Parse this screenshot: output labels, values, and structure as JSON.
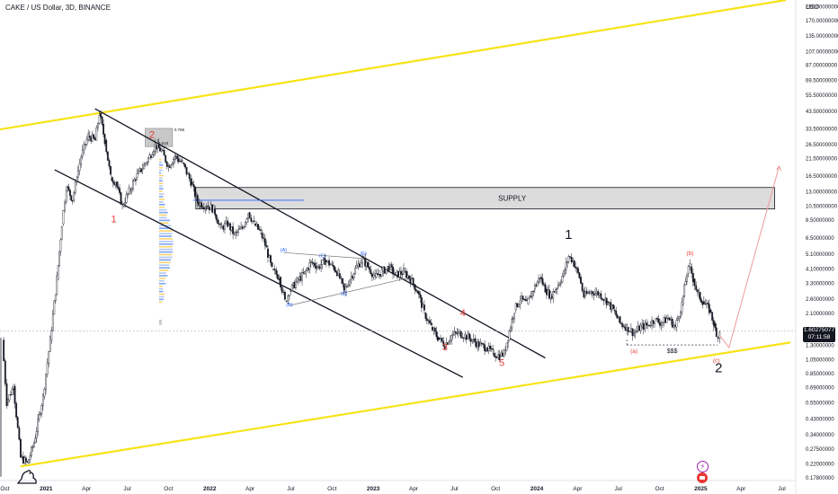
{
  "header": {
    "title": "CAKE / US Dollar, 3D, BINANCE",
    "currency": "USD"
  },
  "last_price": {
    "value": "1.60275077",
    "countdown": "07:11:58"
  },
  "colors": {
    "up": "#131722",
    "down": "#131722",
    "channel": "#f7e316",
    "wave_red": "#e53935",
    "wave_blue": "#2962ff",
    "projection": "#ef9a9a"
  },
  "chart_data": {
    "type": "candlestick",
    "symbol": "CAKE / US Dollar",
    "interval": "3D",
    "exchange": "BINANCE",
    "y_scale": "log",
    "ylim": [
      0.17,
      230
    ],
    "xlim": [
      "2020-09-20",
      "2025-08-01"
    ],
    "x_ticks": [
      "Oct",
      "2021",
      "Apr",
      "Jul",
      "Oct",
      "2022",
      "Apr",
      "Jul",
      "Oct",
      "2023",
      "Apr",
      "Jul",
      "Oct",
      "2024",
      "Apr",
      "Jul",
      "Oct",
      "2025",
      "Apr",
      "Jul"
    ],
    "y_ticks": [
      "210.00000000",
      "170.00000000",
      "135.00000000",
      "107.00000000",
      "87.00000000",
      "69.50000000",
      "55.50000000",
      "43.50000000",
      "33.50000000",
      "26.50000000",
      "21.50000000",
      "16.50000000",
      "13.00000000",
      "10.50000000",
      "8.50000000",
      "6.50000000",
      "5.10000000",
      "4.10000000",
      "3.30000000",
      "2.60000000",
      "2.10000000",
      "1.65000000",
      "1.30000000",
      "1.05000000",
      "0.85000000",
      "0.69000000",
      "0.55000000",
      "0.43000000",
      "0.34000000",
      "0.27500000",
      "0.22000000",
      "0.17800000"
    ],
    "price_path": [
      [
        "2020-09-25",
        1.4
      ],
      [
        "2020-10-05",
        0.55
      ],
      [
        "2020-10-20",
        0.7
      ],
      [
        "2020-11-05",
        0.24
      ],
      [
        "2020-11-20",
        0.22
      ],
      [
        "2020-12-05",
        0.3
      ],
      [
        "2020-12-25",
        0.6
      ],
      [
        "2021-01-10",
        1.4
      ],
      [
        "2021-01-25",
        3.5
      ],
      [
        "2021-02-05",
        8
      ],
      [
        "2021-02-15",
        14
      ],
      [
        "2021-03-01",
        11.5
      ],
      [
        "2021-03-10",
        16
      ],
      [
        "2021-03-20",
        22
      ],
      [
        "2021-04-05",
        30
      ],
      [
        "2021-04-20",
        28
      ],
      [
        "2021-04-30",
        42
      ],
      [
        "2021-05-12",
        28
      ],
      [
        "2021-05-25",
        16
      ],
      [
        "2021-06-05",
        15
      ],
      [
        "2021-06-20",
        10.5
      ],
      [
        "2021-07-05",
        13
      ],
      [
        "2021-07-20",
        16
      ],
      [
        "2021-08-01",
        18
      ],
      [
        "2021-08-20",
        22
      ],
      [
        "2021-09-01",
        26
      ],
      [
        "2021-09-15",
        24
      ],
      [
        "2021-10-01",
        19
      ],
      [
        "2021-10-15",
        22
      ],
      [
        "2021-11-01",
        20
      ],
      [
        "2021-11-20",
        15
      ],
      [
        "2021-12-05",
        11
      ],
      [
        "2021-12-25",
        10.5
      ],
      [
        "2022-01-10",
        10
      ],
      [
        "2022-01-25",
        7.5
      ],
      [
        "2022-02-10",
        8
      ],
      [
        "2022-02-25",
        6.8
      ],
      [
        "2022-03-15",
        7.5
      ],
      [
        "2022-03-28",
        9.5
      ],
      [
        "2022-04-10",
        8
      ],
      [
        "2022-04-25",
        7
      ],
      [
        "2022-05-08",
        5.5
      ],
      [
        "2022-05-20",
        4
      ],
      [
        "2022-06-05",
        3.6
      ],
      [
        "2022-06-18",
        2.5
      ],
      [
        "2022-06-28",
        2.9
      ],
      [
        "2022-07-15",
        3.4
      ],
      [
        "2022-08-01",
        3.8
      ],
      [
        "2022-08-15",
        4.5
      ],
      [
        "2022-09-01",
        4.2
      ],
      [
        "2022-09-15",
        4.6
      ],
      [
        "2022-10-01",
        4.3
      ],
      [
        "2022-10-15",
        3.8
      ],
      [
        "2022-10-28",
        2.9
      ],
      [
        "2022-11-10",
        3.5
      ],
      [
        "2022-11-25",
        4.2
      ],
      [
        "2022-12-08",
        4.7
      ],
      [
        "2022-12-20",
        4.2
      ],
      [
        "2023-01-05",
        3.6
      ],
      [
        "2023-01-20",
        3.9
      ],
      [
        "2023-02-05",
        4.2
      ],
      [
        "2023-02-20",
        3.7
      ],
      [
        "2023-03-10",
        3.9
      ],
      [
        "2023-03-25",
        3.5
      ],
      [
        "2023-04-10",
        2.9
      ],
      [
        "2023-04-25",
        2.1
      ],
      [
        "2023-05-10",
        1.7
      ],
      [
        "2023-05-25",
        1.45
      ],
      [
        "2023-06-10",
        1.3
      ],
      [
        "2023-06-25",
        1.5
      ],
      [
        "2023-07-10",
        1.55
      ],
      [
        "2023-07-25",
        1.5
      ],
      [
        "2023-08-10",
        1.4
      ],
      [
        "2023-08-25",
        1.3
      ],
      [
        "2023-09-10",
        1.25
      ],
      [
        "2023-09-25",
        1.15
      ],
      [
        "2023-10-10",
        1.1
      ],
      [
        "2023-10-20",
        1.15
      ],
      [
        "2023-11-01",
        1.6
      ],
      [
        "2023-11-12",
        2.2
      ],
      [
        "2023-11-25",
        2.6
      ],
      [
        "2023-12-10",
        2.4
      ],
      [
        "2023-12-25",
        3.0
      ],
      [
        "2024-01-08",
        3.6
      ],
      [
        "2024-01-20",
        3.0
      ],
      [
        "2024-02-01",
        2.7
      ],
      [
        "2024-02-15",
        3.1
      ],
      [
        "2024-03-01",
        3.8
      ],
      [
        "2024-03-12",
        4.9
      ],
      [
        "2024-03-22",
        4.6
      ],
      [
        "2024-04-05",
        3.6
      ],
      [
        "2024-04-15",
        2.7
      ],
      [
        "2024-05-01",
        2.9
      ],
      [
        "2024-05-20",
        2.8
      ],
      [
        "2024-06-05",
        2.5
      ],
      [
        "2024-06-20",
        2.2
      ],
      [
        "2024-07-05",
        1.8
      ],
      [
        "2024-07-20",
        1.7
      ],
      [
        "2024-08-05",
        1.55
      ],
      [
        "2024-08-20",
        1.7
      ],
      [
        "2024-09-05",
        1.75
      ],
      [
        "2024-09-20",
        1.9
      ],
      [
        "2024-10-05",
        1.8
      ],
      [
        "2024-10-20",
        1.95
      ],
      [
        "2024-11-05",
        1.7
      ],
      [
        "2024-11-20",
        2.4
      ],
      [
        "2024-12-01",
        3.8
      ],
      [
        "2024-12-08",
        4.2
      ],
      [
        "2024-12-15",
        3.5
      ],
      [
        "2024-12-25",
        2.8
      ],
      [
        "2025-01-05",
        2.5
      ],
      [
        "2025-01-20",
        2.2
      ],
      [
        "2025-01-30",
        1.8
      ],
      [
        "2025-02-05",
        1.45
      ],
      [
        "2025-02-12",
        1.6
      ]
    ],
    "annotations": {
      "supply_zone": {
        "label": "SUPPLY",
        "from": "2021-12-01",
        "to": "2025-06-15",
        "low": 10,
        "high": 13.8
      },
      "fib_box": {
        "from": "2021-08-10",
        "to": "2021-10-10",
        "low": 25.5,
        "high": 33.5,
        "levels": [
          "0.786",
          "0.618"
        ]
      },
      "equal_lows": {
        "label": "$$$",
        "from": "2024-07-20",
        "to": "2025-02-08",
        "value": 1.3
      },
      "wave_labels": [
        {
          "text": "1",
          "date": "2021-06-01",
          "price": 8.2,
          "style": "red"
        },
        {
          "text": "2",
          "date": "2021-08-25",
          "price": 29,
          "style": "red"
        },
        {
          "text": "3",
          "date": "2023-06-10",
          "price": 1.2,
          "style": "red"
        },
        {
          "text": "4",
          "date": "2023-07-20",
          "price": 2.0,
          "style": "red"
        },
        {
          "text": "5",
          "date": "2023-10-15",
          "price": 0.95,
          "style": "red"
        },
        {
          "text": "1",
          "date": "2024-03-12",
          "price": 6.4,
          "style": "black"
        },
        {
          "text": "2",
          "date": "2025-02-10",
          "price": 0.86,
          "style": "black"
        },
        {
          "text": "(A)",
          "date": "2022-06-15",
          "price": 5.3,
          "style": "blue"
        },
        {
          "text": "(B)",
          "date": "2022-06-28",
          "price": 2.32,
          "style": "blue"
        },
        {
          "text": "(C)",
          "date": "2022-09-10",
          "price": 4.85,
          "style": "blue"
        },
        {
          "text": "(D)",
          "date": "2022-10-28",
          "price": 2.75,
          "style": "blue"
        },
        {
          "text": "(E)",
          "date": "2022-12-10",
          "price": 5.0,
          "style": "blue"
        },
        {
          "text": "(a)",
          "date": "2024-08-05",
          "price": 1.15,
          "style": "red"
        },
        {
          "text": "(b)",
          "date": "2024-12-08",
          "price": 5.0,
          "style": "red"
        },
        {
          "text": "(c)",
          "date": "2025-02-05",
          "price": 1.0,
          "style": "red"
        }
      ],
      "channel_upper": [
        [
          "2020-09-20",
          33
        ],
        [
          "2025-07-10",
          230
        ]
      ],
      "channel_lower": [
        [
          "2020-11-05",
          0.21
        ],
        [
          "2025-07-20",
          1.35
        ]
      ],
      "down_channel_top": [
        [
          "2021-04-20",
          45
        ],
        [
          "2024-01-20",
          1.07
        ]
      ],
      "down_channel_bottom": [
        [
          "2021-01-20",
          18
        ],
        [
          "2023-07-20",
          0.8
        ]
      ],
      "triangle_upper": [
        [
          "2022-06-15",
          5.2
        ],
        [
          "2022-12-10",
          4.75
        ]
      ],
      "triangle_lower": [
        [
          "2022-06-28",
          2.35
        ],
        [
          "2023-03-28",
          3.6
        ]
      ],
      "blue_line": {
        "from": "2021-11-25",
        "to": "2022-07-30",
        "value": 11.4
      },
      "projection": [
        [
          "2025-02-12",
          1.5
        ],
        [
          "2025-03-05",
          1.25
        ],
        [
          "2025-06-25",
          19
        ]
      ]
    }
  }
}
